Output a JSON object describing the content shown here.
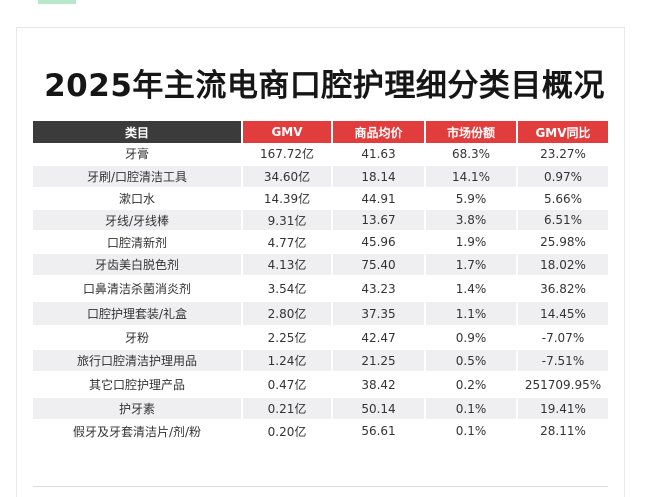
{
  "title": "2025年主流电商口腔护理细分类目概况",
  "headers": [
    "类目",
    "GMV",
    "商品均价",
    "市场份额",
    "GMV同比"
  ],
  "rows": [
    {
      "cat": "牙膏",
      "gmv": "167.72亿",
      "price": "41.63",
      "share": "68.3%",
      "yoy": "23.27%"
    },
    {
      "cat": "牙刷/口腔清洁工具",
      "gmv": "34.60亿",
      "price": "18.14",
      "share": "14.1%",
      "yoy": "0.97%"
    },
    {
      "cat": "漱口水",
      "gmv": "14.39亿",
      "price": "44.91",
      "share": "5.9%",
      "yoy": "5.66%"
    },
    {
      "cat": "牙线/牙线棒",
      "gmv": "9.31亿",
      "price": "13.67",
      "share": "3.8%",
      "yoy": "6.51%"
    },
    {
      "cat": "口腔清新剂",
      "gmv": "4.77亿",
      "price": "45.96",
      "share": "1.9%",
      "yoy": "25.98%"
    },
    {
      "cat": "牙齿美白脱色剂",
      "gmv": "4.13亿",
      "price": "75.40",
      "share": "1.7%",
      "yoy": "18.02%"
    },
    {
      "cat": "口鼻清洁杀菌消炎剂",
      "gmv": "3.54亿",
      "price": "43.23",
      "share": "1.4%",
      "yoy": "36.82%"
    },
    {
      "cat": "口腔护理套装/礼盒",
      "gmv": "2.80亿",
      "price": "37.35",
      "share": "1.1%",
      "yoy": "14.45%"
    },
    {
      "cat": "牙粉",
      "gmv": "2.25亿",
      "price": "42.47",
      "share": "0.9%",
      "yoy": "-7.07%"
    },
    {
      "cat": "旅行口腔清洁护理用品",
      "gmv": "1.24亿",
      "price": "21.25",
      "share": "0.5%",
      "yoy": "-7.51%"
    },
    {
      "cat": "其它口腔护理产品",
      "gmv": "0.47亿",
      "price": "38.42",
      "share": "0.2%",
      "yoy": "251709.95%"
    },
    {
      "cat": "护牙素",
      "gmv": "0.21亿",
      "price": "50.14",
      "share": "0.1%",
      "yoy": "19.41%"
    },
    {
      "cat": "假牙及牙套清洁片/剂/粉",
      "gmv": "0.20亿",
      "price": "56.61",
      "share": "0.1%",
      "yoy": "28.11%"
    }
  ],
  "colors": {
    "header_dark": "#3b3b3b",
    "header_red": "#e23d3d",
    "row_alt": "#efeff1"
  }
}
